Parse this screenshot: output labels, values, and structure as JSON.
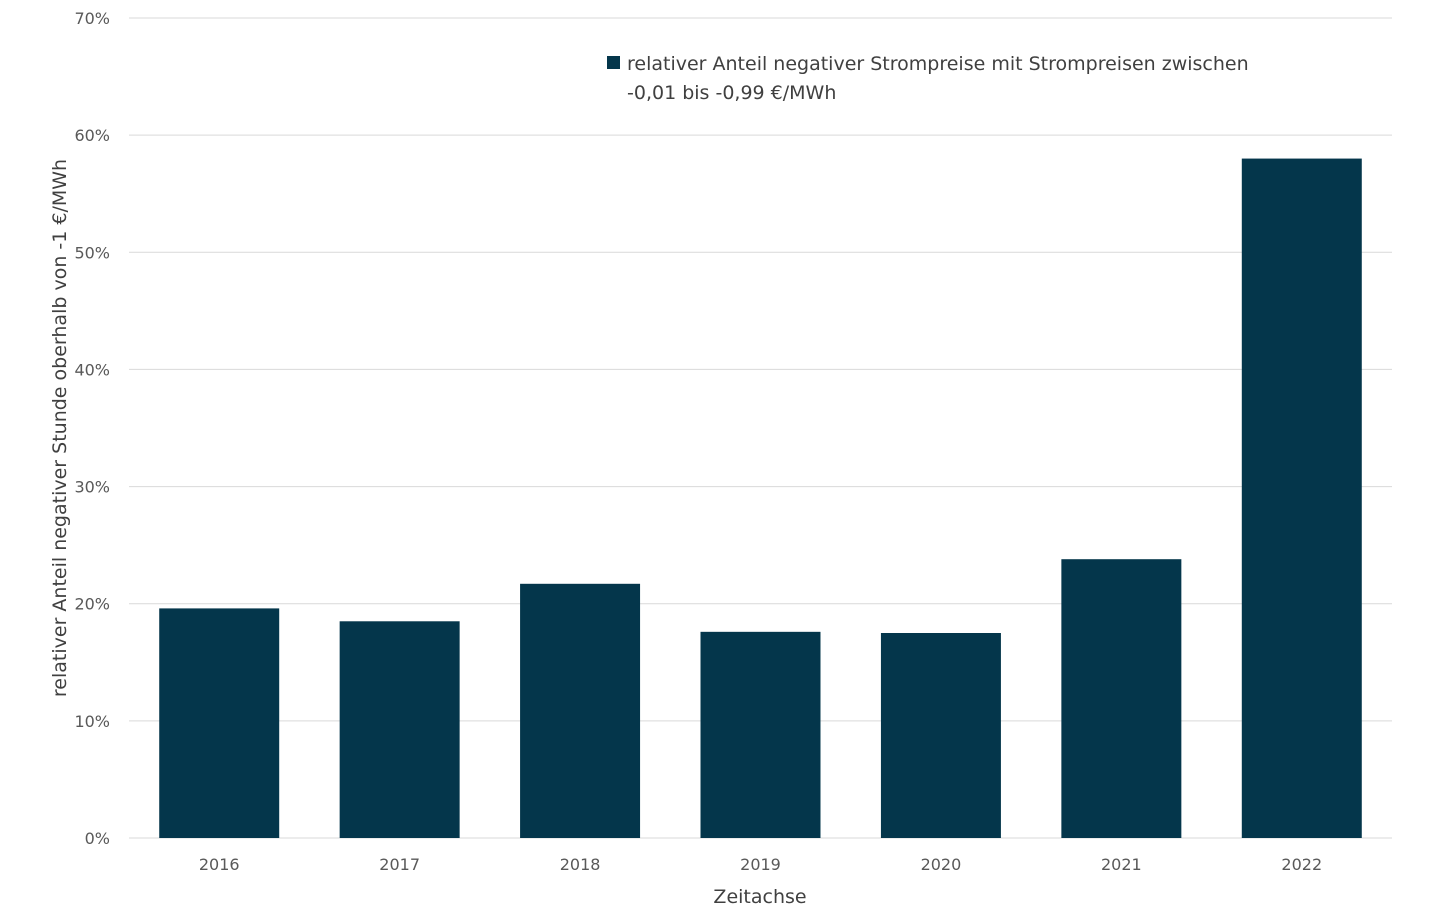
{
  "chart_data": {
    "type": "bar",
    "title": "",
    "xlabel": "Zeitachse",
    "ylabel": "relativer Anteil negativer Stunde oberhalb von -1 €/MWh",
    "categories": [
      "2016",
      "2017",
      "2018",
      "2019",
      "2020",
      "2021",
      "2022"
    ],
    "series": [
      {
        "name": "relativer Anteil negativer Strompreise mit Strompreisen zwischen -0,01 bis -0,99 €/MWh",
        "values": [
          19.6,
          18.5,
          21.7,
          17.6,
          17.5,
          23.8,
          58.0
        ],
        "color": "#04364b"
      }
    ],
    "ylim": [
      0,
      70
    ],
    "yticks": [
      0,
      10,
      20,
      30,
      40,
      50,
      60,
      70
    ],
    "ytick_labels": [
      "0%",
      "10%",
      "20%",
      "30%",
      "40%",
      "50%",
      "60%",
      "70%"
    ],
    "grid": true,
    "legend_position": "top-center",
    "legend_lines": [
      "relativer Anteil negativer Strompreise mit Strompreisen zwischen",
      "-0,01 bis -0,99 €/MWh"
    ],
    "gridline_color": "#d9d9d9"
  }
}
